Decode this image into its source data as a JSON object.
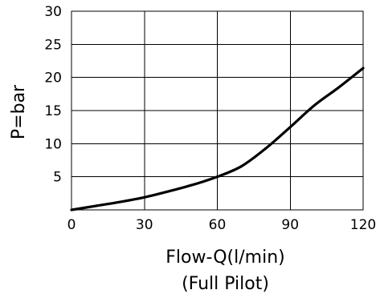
{
  "chart_data": {
    "type": "line",
    "title": "",
    "xlabel": "Flow-Q(l/min)",
    "xlabel_sub": "(Full Pilot)",
    "ylabel": "P=bar",
    "xlim": [
      0,
      120
    ],
    "ylim": [
      0,
      30
    ],
    "xticks": [
      0,
      30,
      60,
      90,
      120
    ],
    "yticks": [
      5,
      10,
      15,
      20,
      25,
      30
    ],
    "grid": true,
    "series": [
      {
        "x": [
          0,
          10,
          20,
          30,
          40,
          50,
          60,
          70,
          80,
          90,
          100,
          110,
          120
        ],
        "y": [
          0,
          0.6,
          1.2,
          1.9,
          2.8,
          3.8,
          5.0,
          6.6,
          9.3,
          12.5,
          15.8,
          18.5,
          21.4
        ]
      }
    ],
    "line_color": "#000000"
  }
}
